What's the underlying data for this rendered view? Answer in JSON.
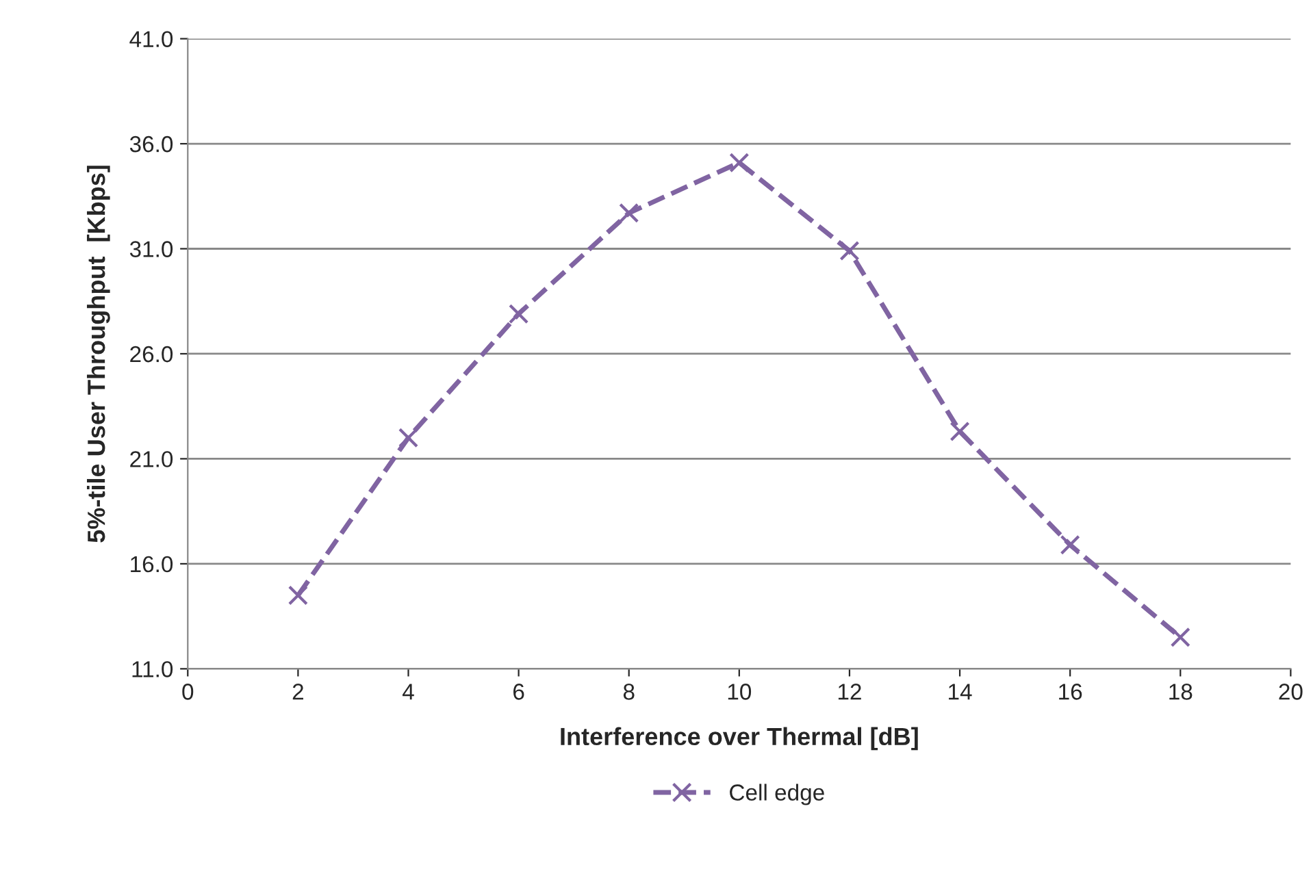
{
  "chart_data": {
    "type": "line",
    "xlabel": "Interference over Thermal [dB]",
    "ylabel": "5%-tile User Throughput  [Kbps]",
    "x": [
      2,
      4,
      6,
      8,
      10,
      12,
      14,
      16,
      18
    ],
    "series": [
      {
        "name": "Cell edge",
        "color": "#8064a2",
        "values": [
          14.5,
          22.0,
          27.9,
          32.7,
          35.1,
          30.9,
          22.3,
          16.9,
          12.5
        ]
      }
    ],
    "xlim": [
      0,
      20
    ],
    "xticks": [
      0,
      2,
      4,
      6,
      8,
      10,
      12,
      14,
      16,
      18,
      20
    ],
    "ylim": [
      11,
      41
    ],
    "yticks": [
      {
        "value": 11,
        "label": "11.0"
      },
      {
        "value": 16,
        "label": "16.0"
      },
      {
        "value": 21,
        "label": "21.0"
      },
      {
        "value": 26,
        "label": "26.0"
      },
      {
        "value": 31,
        "label": "31.0"
      },
      {
        "value": 36,
        "label": "36.0"
      },
      {
        "value": 41,
        "label": "41.0"
      }
    ],
    "grid": "y",
    "legend": "bottom",
    "marker": "cross",
    "line_style": "dashed"
  }
}
